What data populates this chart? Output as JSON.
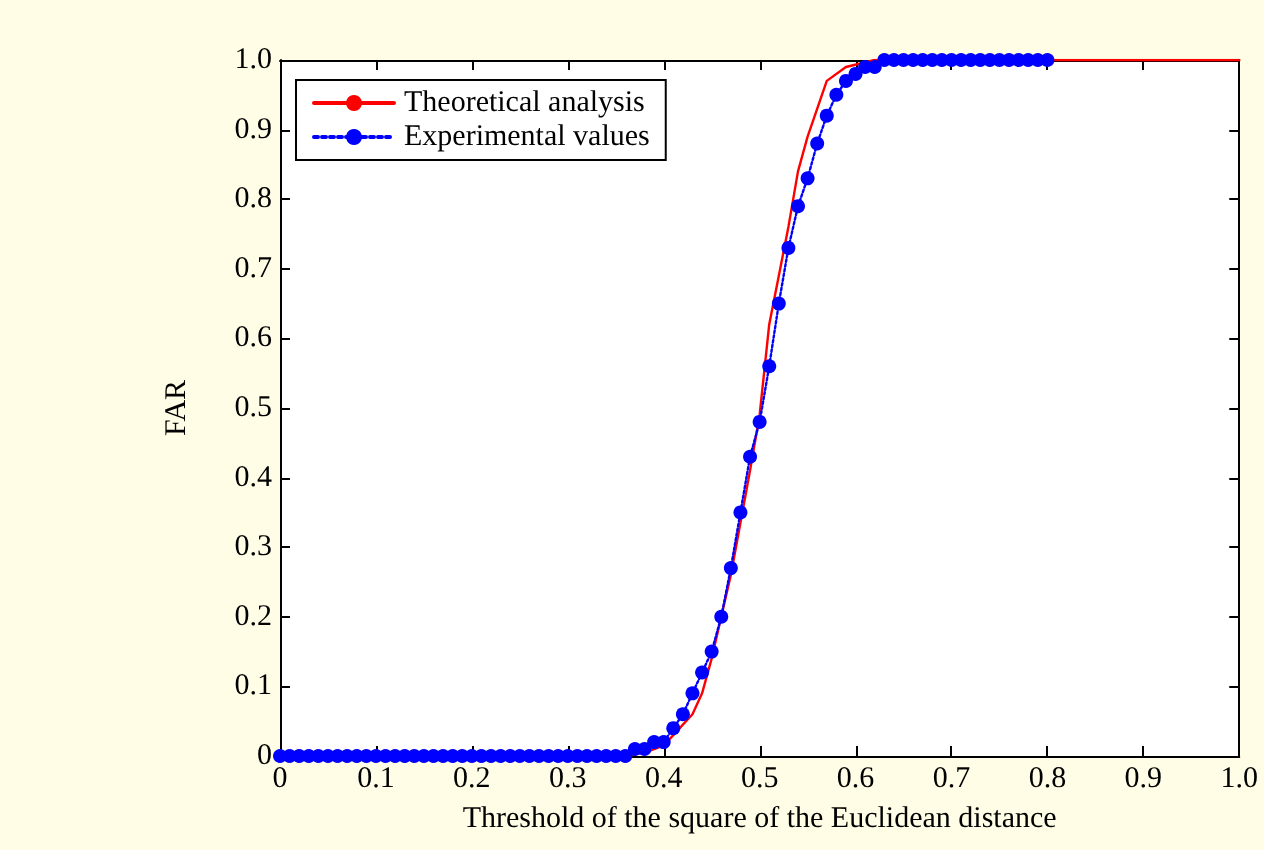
{
  "chart_data": {
    "type": "line",
    "xlabel": "Threshold of the square of the Euclidean distance",
    "ylabel": "FAR",
    "xlim": [
      0,
      1
    ],
    "ylim": [
      0,
      1
    ],
    "xticks": [
      0,
      0.1,
      0.2,
      0.3,
      0.4,
      0.5,
      0.6,
      0.7,
      0.8,
      0.9,
      {
        "value": 1,
        "label": "1.0"
      }
    ],
    "yticks": [
      0,
      0.1,
      0.2,
      0.3,
      0.4,
      0.5,
      0.6,
      0.7,
      0.8,
      0.9,
      {
        "value": 1,
        "label": "1.0"
      }
    ],
    "grid": false,
    "legend": "top left",
    "series": [
      {
        "name": "Theoretical analysis",
        "color": "#ff0000",
        "marker": "none",
        "line_style": "solid",
        "x": [
          0,
          0.36,
          0.38,
          0.4,
          0.41,
          0.43,
          0.44,
          0.45,
          0.47,
          0.49,
          0.5,
          0.51,
          0.53,
          0.54,
          0.55,
          0.57,
          0.59,
          0.62,
          1
        ],
        "values": [
          0,
          0,
          0.005,
          0.015,
          0.03,
          0.06,
          0.09,
          0.14,
          0.26,
          0.41,
          0.49,
          0.62,
          0.76,
          0.84,
          0.89,
          0.97,
          0.99,
          1,
          1
        ]
      },
      {
        "name": "Experimental values",
        "color": "#0000ff",
        "marker": "circle",
        "line_style": "dotted",
        "x": [
          0,
          0.01,
          0.02,
          0.03,
          0.04,
          0.05,
          0.06,
          0.07,
          0.08,
          0.09,
          0.1,
          0.11,
          0.12,
          0.13,
          0.14,
          0.15,
          0.16,
          0.17,
          0.18,
          0.19,
          0.2,
          0.21,
          0.22,
          0.23,
          0.24,
          0.25,
          0.26,
          0.27,
          0.28,
          0.29,
          0.3,
          0.31,
          0.32,
          0.33,
          0.34,
          0.35,
          0.36,
          0.37,
          0.38,
          0.39,
          0.4,
          0.41,
          0.42,
          0.43,
          0.44,
          0.45,
          0.46,
          0.47,
          0.48,
          0.49,
          0.5,
          0.51,
          0.52,
          0.53,
          0.54,
          0.55,
          0.56,
          0.57,
          0.58,
          0.59,
          0.6,
          0.61,
          0.62,
          0.63,
          0.64,
          0.65,
          0.66,
          0.67,
          0.68,
          0.69,
          0.7,
          0.71,
          0.72,
          0.73,
          0.74,
          0.75,
          0.76,
          0.77,
          0.78,
          0.79,
          0.8
        ],
        "values": [
          0,
          0,
          0,
          0,
          0,
          0,
          0,
          0,
          0,
          0,
          0,
          0,
          0,
          0,
          0,
          0,
          0,
          0,
          0,
          0,
          0,
          0,
          0,
          0,
          0,
          0,
          0,
          0,
          0,
          0,
          0,
          0,
          0,
          0,
          0,
          0,
          0,
          0.01,
          0.01,
          0.02,
          0.02,
          0.04,
          0.06,
          0.09,
          0.12,
          0.15,
          0.2,
          0.27,
          0.35,
          0.43,
          0.48,
          0.56,
          0.65,
          0.73,
          0.79,
          0.83,
          0.88,
          0.92,
          0.95,
          0.97,
          0.98,
          0.99,
          0.99,
          1,
          1,
          1,
          1,
          1,
          1,
          1,
          1,
          1,
          1,
          1,
          1,
          1,
          1,
          1,
          1,
          1,
          1
        ]
      }
    ]
  }
}
